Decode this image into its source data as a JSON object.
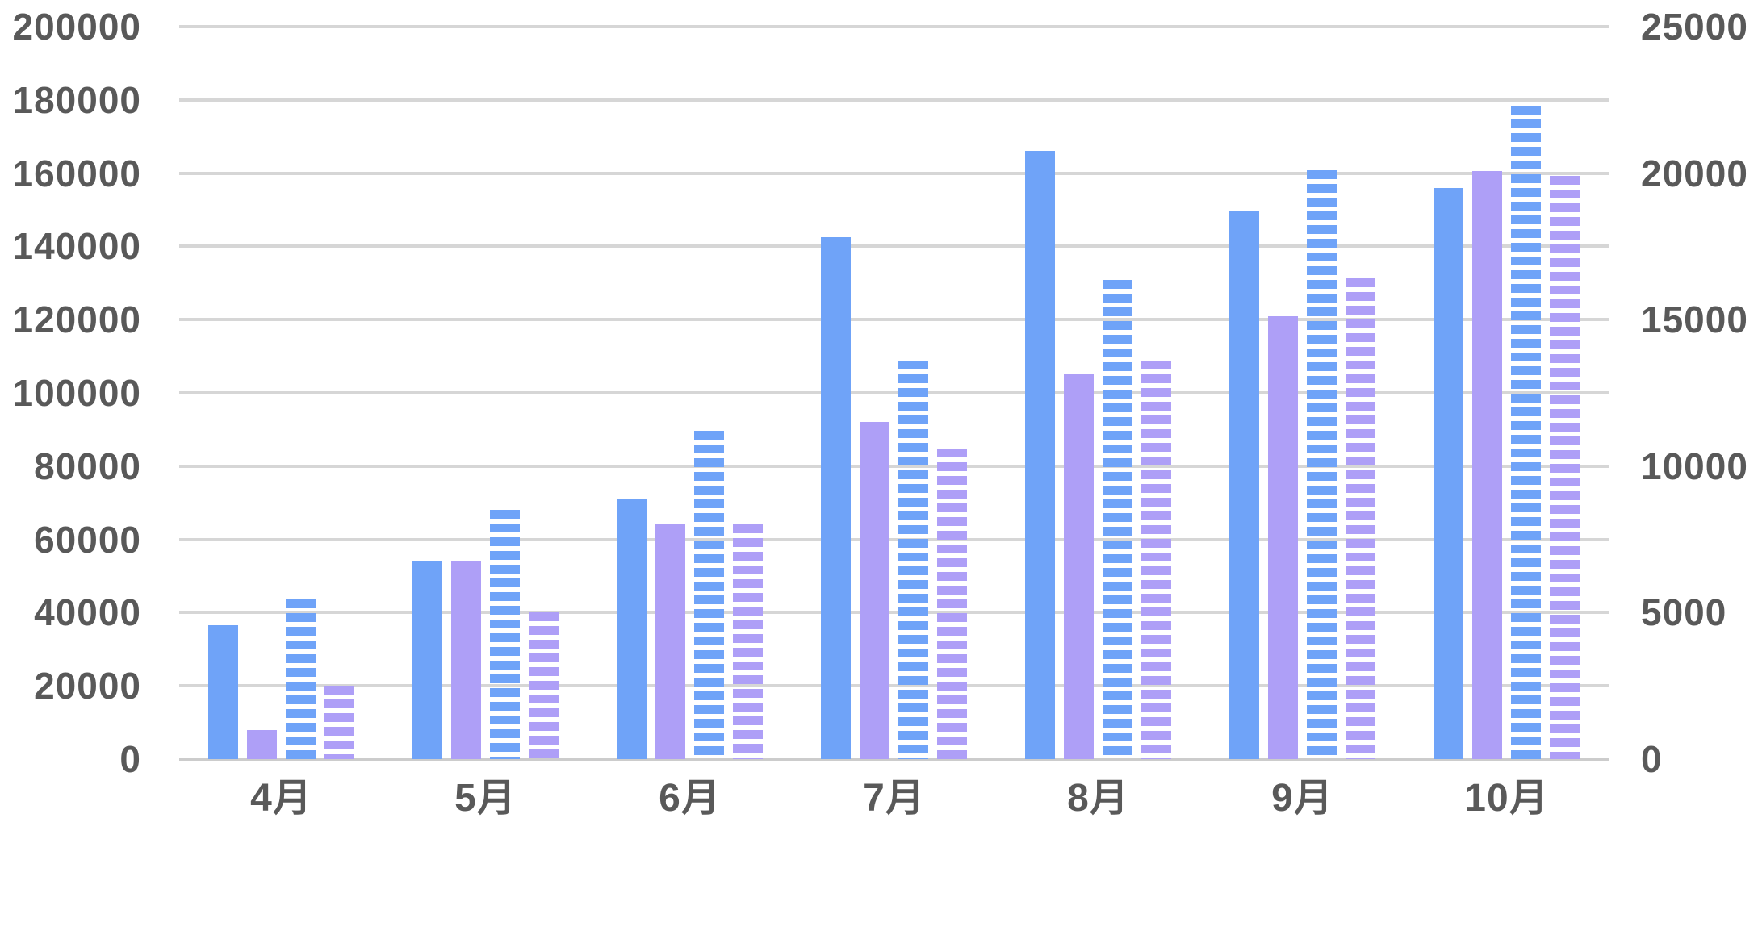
{
  "chart_data": {
    "type": "bar",
    "title": "",
    "legend_position": "none",
    "grid": true,
    "categories": [
      "4月",
      "5月",
      "6月",
      "7月",
      "8月",
      "9月",
      "10月"
    ],
    "series": [
      {
        "name": "solid-blue",
        "axis": "left",
        "style": "solid",
        "color": "#6fa3f8",
        "values": [
          36500,
          54000,
          71000,
          142500,
          166000,
          149500,
          156000
        ]
      },
      {
        "name": "solid-purple",
        "axis": "left",
        "style": "solid",
        "color": "#ae9ff7",
        "values": [
          8000,
          54000,
          64000,
          92000,
          105000,
          121000,
          160500
        ]
      },
      {
        "name": "striped-blue",
        "axis": "right",
        "style": "striped",
        "color": "#6fa3f8",
        "values": [
          5440,
          8500,
          11200,
          13600,
          16350,
          20100,
          22300
        ]
      },
      {
        "name": "striped-purple",
        "axis": "right",
        "style": "striped",
        "color": "#ae9ff7",
        "values": [
          2500,
          5000,
          8000,
          10600,
          13600,
          16400,
          19900
        ]
      }
    ],
    "left_axis": {
      "min": 0,
      "max": 200000,
      "step": 20000,
      "ticks": [
        "200000",
        "180000",
        "160000",
        "140000",
        "120000",
        "100000",
        "80000",
        "60000",
        "40000",
        "20000",
        "0"
      ]
    },
    "right_axis": {
      "min": 0,
      "max": 25000,
      "step": 5000,
      "ticks": [
        "25000",
        "20000",
        "15000",
        "10000",
        "5000",
        "0"
      ]
    },
    "colors": {
      "bar_blue": "#6fa3f8",
      "bar_purple": "#ae9ff7",
      "gridline": "#d6d6d6",
      "axis_line": "#cccccc",
      "tick_text": "#595959",
      "background": "#ffffff"
    }
  }
}
